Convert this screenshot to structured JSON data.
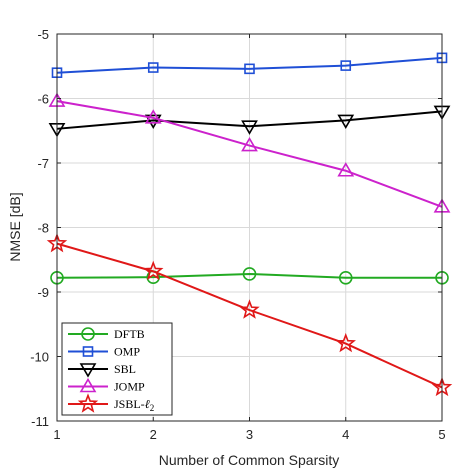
{
  "chart_data": {
    "type": "line",
    "title": "",
    "xlabel": "Number of Common Sparsity",
    "ylabel": "NMSE [dB]",
    "x": [
      1,
      2,
      3,
      4,
      5
    ],
    "xlim": [
      1,
      5
    ],
    "ylim": [
      -11,
      -5
    ],
    "xticks": [
      "1",
      "2",
      "3",
      "4",
      "5"
    ],
    "yticks": [
      "-11",
      "-10",
      "-9",
      "-8",
      "-7",
      "-6",
      "-5"
    ],
    "grid": true,
    "legend_position": "bottom-left",
    "series": [
      {
        "name": "DFTB",
        "values": [
          -8.78,
          -8.77,
          -8.72,
          -8.78,
          -8.78
        ],
        "color": "#22aa22",
        "marker": "circle"
      },
      {
        "name": "OMP",
        "values": [
          -5.6,
          -5.52,
          -5.54,
          -5.49,
          -5.37
        ],
        "color": "#1f4fd6",
        "marker": "square"
      },
      {
        "name": "SBL",
        "values": [
          -6.47,
          -6.34,
          -6.43,
          -6.34,
          -6.2
        ],
        "color": "#000000",
        "marker": "triangle-down"
      },
      {
        "name": "JOMP",
        "values": [
          -6.04,
          -6.3,
          -6.73,
          -7.12,
          -7.68
        ],
        "color": "#cc22cc",
        "marker": "triangle-up"
      },
      {
        "name": "JSBL-",
        "name_subscript": "2",
        "values": [
          -8.25,
          -8.68,
          -9.28,
          -9.8,
          -10.48
        ],
        "color": "#e01818",
        "marker": "star"
      }
    ]
  }
}
